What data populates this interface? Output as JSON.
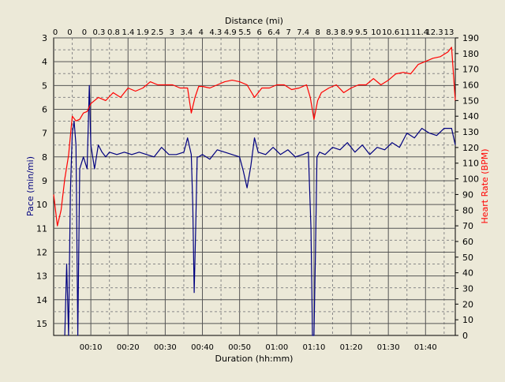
{
  "chart_data": {
    "type": "line",
    "background": "#ece9d8",
    "grid": true,
    "top_axis": {
      "title": "Distance (mi)",
      "tick_labels": [
        "0",
        "0",
        "0",
        "0.3",
        "0.8",
        "1.4",
        "1.9",
        "2.5",
        "3",
        "3.4",
        "4",
        "4.3",
        "4.9",
        "5.5",
        "6",
        "6.4",
        "7",
        "7.4",
        "8",
        "8.3",
        "8.9",
        "9.5",
        "10",
        "10.6",
        "11",
        "11.4",
        "12.3",
        "13"
      ]
    },
    "x_axis": {
      "title": "Duration (hh:mm)",
      "range_minutes": [
        0,
        108
      ],
      "tick_minutes": [
        10,
        20,
        30,
        40,
        50,
        60,
        70,
        80,
        90,
        100
      ],
      "tick_labels": [
        "00:10",
        "00:20",
        "00:30",
        "00:40",
        "00:50",
        "01:00",
        "01:10",
        "01:20",
        "01:30",
        "01:40"
      ]
    },
    "y_left": {
      "title": "Pace (min/mi)",
      "range": [
        3,
        15.5
      ],
      "inverted": true,
      "ticks": [
        3,
        4,
        5,
        6,
        7,
        8,
        9,
        10,
        11,
        12,
        13,
        14,
        15
      ],
      "color": "#000080"
    },
    "y_right": {
      "title": "Heart Rate (BPM)",
      "range": [
        0,
        190
      ],
      "ticks": [
        0,
        10,
        20,
        30,
        40,
        50,
        60,
        70,
        80,
        90,
        100,
        110,
        120,
        130,
        140,
        150,
        160,
        170,
        180,
        190
      ],
      "color": "#ff0000"
    },
    "series": [
      {
        "axis": "left",
        "color": "#000080",
        "x": [
          0,
          2,
          3,
          3.5,
          4,
          4.5,
          5,
          5.5,
          6,
          6.5,
          7,
          8,
          9,
          9.6,
          10,
          10.5,
          11,
          12,
          13,
          14,
          15,
          17,
          19,
          21,
          23,
          25,
          27,
          29,
          31,
          33,
          35,
          36,
          37,
          37.4,
          37.8,
          38.2,
          38.6,
          39,
          40,
          42,
          44,
          46,
          48,
          50,
          51,
          52,
          53,
          54,
          55,
          57,
          59,
          61,
          63,
          65,
          67,
          68.5,
          69.2,
          69.6,
          70,
          70.4,
          70.8,
          71.5,
          73,
          75,
          77,
          79,
          81,
          83,
          85,
          87,
          89,
          91,
          93,
          95,
          97,
          99,
          101,
          103,
          105,
          107,
          108
        ],
        "y": [
          null,
          null,
          15.5,
          12.5,
          15.5,
          9.5,
          7.0,
          6.5,
          7.5,
          15.5,
          8.5,
          8.0,
          8.5,
          5.0,
          7.5,
          8.0,
          8.5,
          7.5,
          7.8,
          8.0,
          7.8,
          7.9,
          7.8,
          7.9,
          7.8,
          7.9,
          8.0,
          7.6,
          7.9,
          7.9,
          7.8,
          7.2,
          7.9,
          10.0,
          13.7,
          11.0,
          8.0,
          8.0,
          7.9,
          8.1,
          7.7,
          7.8,
          7.9,
          8.0,
          8.6,
          9.3,
          8.4,
          7.2,
          7.8,
          7.9,
          7.6,
          7.9,
          7.7,
          8.0,
          7.9,
          7.8,
          11.0,
          15.5,
          15.5,
          12.0,
          8.0,
          7.8,
          7.9,
          7.6,
          7.7,
          7.4,
          7.8,
          7.5,
          7.9,
          7.6,
          7.7,
          7.4,
          7.6,
          7.0,
          7.2,
          6.8,
          7.0,
          7.1,
          6.8,
          6.8,
          7.5
        ]
      },
      {
        "axis": "right",
        "color": "#ff0000",
        "x": [
          0,
          1,
          2,
          3,
          4,
          5,
          6,
          7,
          8,
          9,
          10,
          12,
          14,
          16,
          18,
          20,
          22,
          24,
          26,
          28,
          30,
          32,
          34,
          36,
          37,
          38,
          39,
          40,
          42,
          44,
          46,
          48,
          50,
          52,
          54,
          56,
          58,
          60,
          62,
          64,
          66,
          68,
          69,
          70,
          71,
          72,
          74,
          76,
          78,
          80,
          82,
          84,
          86,
          88,
          90,
          92,
          94,
          96,
          98,
          100,
          102,
          104,
          106,
          107,
          108
        ],
        "y": [
          90,
          70,
          80,
          100,
          115,
          140,
          137,
          138,
          142,
          143,
          148,
          152,
          150,
          155,
          152,
          158,
          156,
          158,
          162,
          160,
          160,
          160,
          158,
          158,
          142,
          152,
          159,
          159,
          158,
          160,
          162,
          163,
          162,
          160,
          152,
          158,
          158,
          160,
          160,
          157,
          158,
          160,
          152,
          138,
          150,
          155,
          158,
          160,
          155,
          158,
          160,
          160,
          164,
          160,
          163,
          167,
          168,
          167,
          173,
          175,
          177,
          178,
          181,
          184,
          150
        ]
      }
    ]
  }
}
